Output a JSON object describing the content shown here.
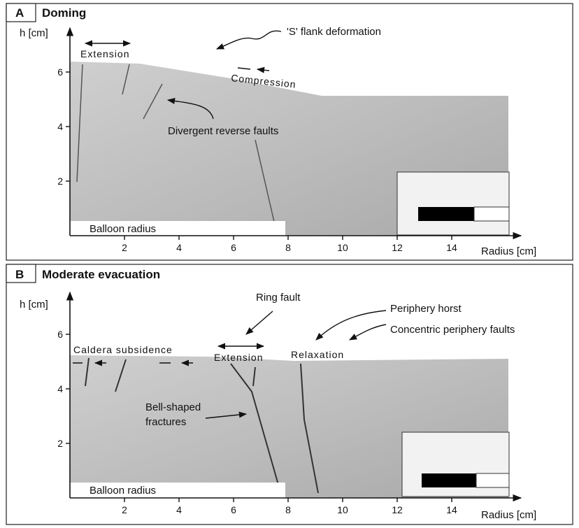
{
  "panels": [
    {
      "letter": "A",
      "title": "Doming",
      "y_label": "h [cm]",
      "x_label": "Radius [cm]",
      "yticks": [
        2,
        4,
        6
      ],
      "xticks": [
        2,
        4,
        6,
        8,
        10,
        12,
        14
      ],
      "balloon": "Balloon radius",
      "annotations": [
        "Extension",
        "'S' flank deformation",
        "Compression",
        "Divergent reverse faults"
      ]
    },
    {
      "letter": "B",
      "title": "Moderate evacuation",
      "y_label": "h [cm]",
      "x_label": "Radius [cm]",
      "yticks": [
        2,
        4,
        6
      ],
      "xticks": [
        2,
        4,
        6,
        8,
        10,
        12,
        14
      ],
      "balloon": "Balloon radius",
      "annotations": [
        "Caldera subsidence",
        "Extension",
        "Ring fault",
        "Relaxation",
        "Periphery horst",
        "Concentric periphery faults",
        "Bell-shaped",
        "fractures"
      ]
    }
  ]
}
